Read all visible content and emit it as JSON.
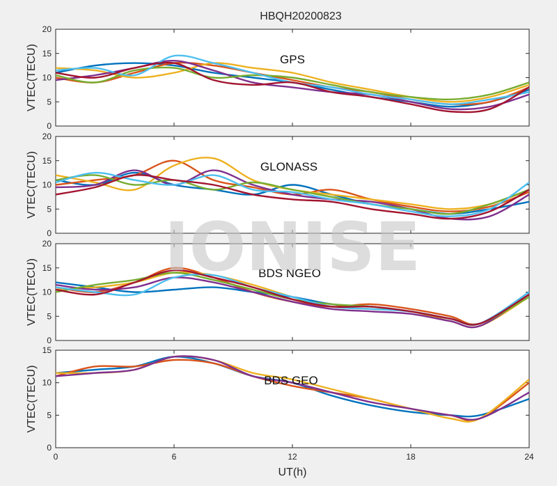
{
  "chart_data": {
    "type": "line",
    "title": "HBQH20200823",
    "watermark": "IONISE",
    "xlabel": "UT(h)",
    "xlim": [
      0,
      24
    ],
    "xticks": [
      0,
      6,
      12,
      18,
      24
    ],
    "series_colors": [
      "#0072BD",
      "#D95319",
      "#EDB120",
      "#7E2F8E",
      "#77AC30",
      "#4DBEEE",
      "#A2142F"
    ],
    "panels": [
      {
        "label": "GPS",
        "ylabel": "VTEC(TECU)",
        "ylim": [
          0,
          20
        ],
        "yticks": [
          0,
          5,
          10,
          15,
          20
        ],
        "series": [
          {
            "x": [
              0,
              2,
              4,
              6,
              8,
              10,
              12,
              14,
              16,
              18,
              20,
              22,
              24
            ],
            "y": [
              11,
              12.5,
              13,
              12.5,
              11,
              10,
              9,
              7.5,
              6,
              5,
              4,
              5,
              7.5
            ]
          },
          {
            "x": [
              0,
              2,
              4,
              6,
              8,
              10,
              12,
              14,
              16,
              18,
              20,
              22,
              24
            ],
            "y": [
              10,
              9,
              11,
              13,
              12.5,
              11,
              9.5,
              8,
              7,
              5.5,
              4.5,
              5,
              8
            ]
          },
          {
            "x": [
              0,
              2,
              4,
              6,
              8,
              10,
              12,
              14,
              16,
              18,
              20,
              22,
              24
            ],
            "y": [
              12,
              11.5,
              10,
              11,
              13,
              12,
              11,
              9,
              7.5,
              6,
              5,
              6,
              8.5
            ]
          },
          {
            "x": [
              0,
              2,
              4,
              6,
              8,
              10,
              12,
              14,
              16,
              18,
              20,
              22,
              24
            ],
            "y": [
              9.5,
              10.5,
              12,
              13.5,
              11.5,
              9,
              8,
              7,
              6.5,
              5,
              3.5,
              4,
              6.5
            ]
          },
          {
            "x": [
              0,
              2,
              4,
              6,
              8,
              10,
              12,
              14,
              16,
              18,
              20,
              22,
              24
            ],
            "y": [
              10.5,
              9,
              11.5,
              12,
              10,
              10.5,
              10,
              8.5,
              7,
              6,
              5.5,
              6.5,
              9
            ]
          },
          {
            "x": [
              0,
              2,
              4,
              6,
              8,
              10,
              12,
              14,
              16,
              18,
              20,
              22,
              24
            ],
            "y": [
              11.5,
              12,
              10.5,
              14.5,
              13,
              11,
              9,
              8,
              6.5,
              5.5,
              4.5,
              5.5,
              7
            ]
          },
          {
            "x": [
              0,
              2,
              4,
              6,
              8,
              10,
              12,
              14,
              16,
              18,
              20,
              22,
              24
            ],
            "y": [
              11,
              10,
              12,
              13,
              9.5,
              8.5,
              9,
              7,
              6,
              4.5,
              3,
              3.5,
              8
            ]
          }
        ]
      },
      {
        "label": "GLONASS",
        "ylabel": "VTEC(TECU)",
        "ylim": [
          0,
          20
        ],
        "yticks": [
          0,
          5,
          10,
          15,
          20
        ],
        "series": [
          {
            "x": [
              0,
              2,
              4,
              6,
              8,
              10,
              12,
              14,
              16,
              18,
              20,
              22,
              24
            ],
            "y": [
              11,
              10,
              12.5,
              10,
              9,
              8,
              10,
              8,
              6,
              5,
              4,
              5,
              6.5
            ]
          },
          {
            "x": [
              0,
              2,
              4,
              6,
              8,
              10,
              12,
              14,
              16,
              18,
              20,
              22,
              24
            ],
            "y": [
              10,
              11,
              12,
              15,
              11,
              9.5,
              8,
              9,
              7,
              5.5,
              4.5,
              5.5,
              8.5
            ]
          },
          {
            "x": [
              0,
              2,
              4,
              6,
              8,
              10,
              12,
              14,
              16,
              18,
              20,
              22,
              24
            ],
            "y": [
              12,
              10.5,
              9,
              14,
              15.5,
              11,
              9,
              8,
              7,
              6,
              5,
              6,
              9
            ]
          },
          {
            "x": [
              0,
              2,
              4,
              6,
              8,
              10,
              12,
              14,
              16,
              18,
              20,
              22,
              24
            ],
            "y": [
              9.5,
              10,
              13,
              10,
              13,
              10,
              8,
              7,
              6.5,
              5,
              3,
              3.5,
              8
            ]
          },
          {
            "x": [
              0,
              2,
              4,
              6,
              8,
              10,
              12,
              14,
              16,
              18,
              20,
              22,
              24
            ],
            "y": [
              11,
              12,
              10,
              11,
              9,
              10.5,
              9,
              7.5,
              6,
              5,
              4,
              6,
              9
            ]
          },
          {
            "x": [
              0,
              2,
              4,
              6,
              8,
              10,
              12,
              14,
              16,
              18,
              20,
              22,
              24
            ],
            "y": [
              10.5,
              12.5,
              11,
              10,
              12,
              9,
              8.5,
              7,
              6,
              4.5,
              3.5,
              5,
              10.5
            ]
          },
          {
            "x": [
              0,
              2,
              4,
              6,
              8,
              10,
              12,
              14,
              16,
              18,
              20,
              22,
              24
            ],
            "y": [
              8,
              9.5,
              12,
              11,
              10,
              8,
              7,
              6.5,
              5,
              4,
              3,
              4.5,
              9
            ]
          }
        ]
      },
      {
        "label": "BDS NGEO",
        "ylabel": "VTEC(TECU)",
        "ylim": [
          0,
          20
        ],
        "yticks": [
          0,
          5,
          10,
          15,
          20
        ],
        "series": [
          {
            "x": [
              0,
              2,
              4,
              6,
              8,
              10,
              12,
              14,
              16,
              18,
              20,
              21.5,
              24
            ],
            "y": [
              12,
              11,
              10,
              10.5,
              11,
              10,
              9,
              7.5,
              7,
              6,
              4.5,
              3.5,
              10
            ]
          },
          {
            "x": [
              0,
              2,
              4,
              6,
              8,
              10,
              12,
              14,
              16,
              18,
              20,
              21.5,
              24
            ],
            "y": [
              11,
              10,
              12,
              15,
              13,
              10,
              8,
              7,
              7.5,
              6.5,
              5,
              3.5,
              9.5
            ]
          },
          {
            "x": [
              0,
              2,
              4,
              6,
              8,
              10,
              12,
              14,
              16,
              18,
              20,
              21.5,
              24
            ],
            "y": [
              10.5,
              11,
              12,
              14,
              13.5,
              11.5,
              9,
              7,
              6.5,
              6,
              4,
              3,
              9
            ]
          },
          {
            "x": [
              0,
              2,
              4,
              6,
              8,
              10,
              12,
              14,
              16,
              18,
              20,
              21.5,
              24
            ],
            "y": [
              11.5,
              10.5,
              11,
              13,
              12,
              10,
              8,
              6.5,
              6,
              5.5,
              4,
              3,
              9.5
            ]
          },
          {
            "x": [
              0,
              2,
              4,
              6,
              8,
              10,
              12,
              14,
              16,
              18,
              20,
              21.5,
              24
            ],
            "y": [
              10,
              11.5,
              12.5,
              14,
              12.5,
              10.5,
              8.5,
              7.5,
              7,
              6,
              4.5,
              3.5,
              9
            ]
          },
          {
            "x": [
              0,
              2,
              4,
              6,
              8,
              10,
              12,
              14,
              16,
              18,
              20,
              21.5,
              24
            ],
            "y": [
              11,
              10,
              9.5,
              13,
              13.5,
              11,
              9,
              7,
              6.5,
              6,
              4.5,
              3.5,
              10
            ]
          },
          {
            "x": [
              0,
              2,
              4,
              6,
              8,
              10,
              12,
              14,
              16,
              18,
              20,
              21.5,
              24
            ],
            "y": [
              10.5,
              9.5,
              12,
              14.5,
              13,
              11,
              8.5,
              7,
              7,
              6,
              4.5,
              3.5,
              9.5
            ]
          }
        ]
      },
      {
        "label": "BDS GEO",
        "ylabel": "VTEC(TECU)",
        "ylim": [
          0,
          15
        ],
        "yticks": [
          0,
          5,
          10,
          15
        ],
        "series": [
          {
            "x": [
              0,
              2,
              4,
              6,
              8,
              10,
              12,
              14,
              16,
              18,
              20,
              21.5,
              24
            ],
            "y": [
              11.5,
              12,
              12.5,
              14,
              13,
              11,
              10,
              8,
              6.5,
              5.5,
              5,
              5,
              7.5
            ]
          },
          {
            "x": [
              0,
              2,
              4,
              6,
              8,
              10,
              12,
              14,
              16,
              18,
              20,
              21.5,
              24
            ],
            "y": [
              11,
              12.5,
              12.5,
              13.5,
              13,
              11,
              9.5,
              8.5,
              7.5,
              6,
              5,
              4.5,
              10
            ]
          },
          {
            "x": [
              0,
              2,
              4,
              6,
              8,
              10,
              12,
              14,
              16,
              18,
              20,
              21.5,
              24
            ],
            "y": [
              11.5,
              11.5,
              12,
              14,
              13.5,
              11.5,
              10.5,
              9,
              7.5,
              6,
              4.5,
              4.5,
              10.5
            ]
          },
          {
            "x": [
              0,
              2,
              4,
              6,
              8,
              10,
              12,
              14,
              16,
              18,
              20,
              21.5,
              24
            ],
            "y": [
              11,
              11.5,
              12,
              14,
              13.5,
              11,
              10,
              8.5,
              7,
              6,
              5,
              4.5,
              8.5
            ]
          }
        ]
      }
    ]
  }
}
